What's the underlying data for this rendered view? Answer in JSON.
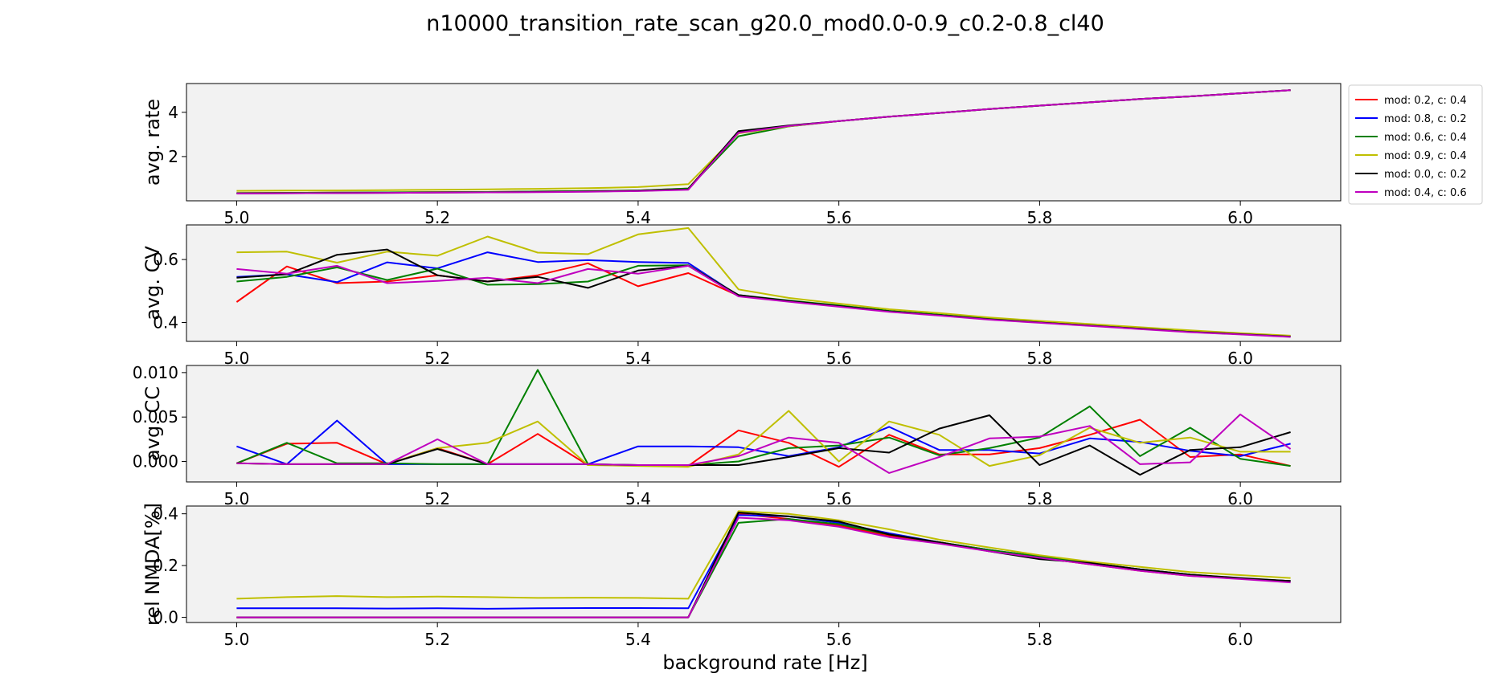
{
  "chart_data": {
    "type": "line",
    "title": "n10000_transition_rate_scan_g20.0_mod0.0-0.9_c0.2-0.8_cl40",
    "xlabel": "background rate [Hz]",
    "xlim": [
      4.95,
      6.1
    ],
    "x_ticks": [
      "5.0",
      "5.2",
      "5.4",
      "5.6",
      "5.8",
      "6.0"
    ],
    "x": [
      5.0,
      5.05,
      5.1,
      5.15,
      5.2,
      5.25,
      5.3,
      5.35,
      5.4,
      5.45,
      5.5,
      5.55,
      5.6,
      5.65,
      5.7,
      5.75,
      5.8,
      5.85,
      5.9,
      5.95,
      6.0,
      6.05
    ],
    "legend": {
      "position": "outside-right",
      "entries": [
        {
          "label": "mod: 0.2, c: 0.4",
          "color": "#ff0000"
        },
        {
          "label": "mod: 0.8, c: 0.2",
          "color": "#0000ff"
        },
        {
          "label": "mod: 0.6, c: 0.4",
          "color": "#008000"
        },
        {
          "label": "mod: 0.9, c: 0.4",
          "color": "#bfbf00"
        },
        {
          "label": "mod: 0.0, c: 0.2",
          "color": "#000000"
        },
        {
          "label": "mod: 0.4, c: 0.6",
          "color": "#bf00bf"
        }
      ]
    },
    "panels": [
      {
        "ylabel": "avg. rate",
        "ylim": [
          0,
          5.3
        ],
        "y_ticks": [
          {
            "v": 2,
            "label": "2"
          },
          {
            "v": 4,
            "label": "4"
          }
        ],
        "series": [
          {
            "color": "#ff0000",
            "values": [
              0.35,
              0.36,
              0.37,
              0.38,
              0.39,
              0.4,
              0.42,
              0.44,
              0.47,
              0.55,
              3.1,
              3.38,
              3.6,
              3.8,
              3.97,
              4.15,
              4.3,
              4.45,
              4.6,
              4.72,
              4.86,
              5.0
            ]
          },
          {
            "color": "#0000ff",
            "values": [
              0.34,
              0.35,
              0.36,
              0.37,
              0.38,
              0.39,
              0.41,
              0.43,
              0.46,
              0.53,
              3.12,
              3.39,
              3.6,
              3.8,
              3.97,
              4.15,
              4.3,
              4.45,
              4.6,
              4.72,
              4.86,
              5.0
            ]
          },
          {
            "color": "#008000",
            "values": [
              0.35,
              0.36,
              0.37,
              0.38,
              0.39,
              0.4,
              0.42,
              0.44,
              0.47,
              0.56,
              2.92,
              3.36,
              3.6,
              3.8,
              3.97,
              4.15,
              4.3,
              4.45,
              4.6,
              4.72,
              4.86,
              5.0
            ]
          },
          {
            "color": "#bfbf00",
            "values": [
              0.45,
              0.46,
              0.47,
              0.48,
              0.5,
              0.52,
              0.54,
              0.57,
              0.62,
              0.75,
              3.05,
              3.37,
              3.6,
              3.8,
              3.97,
              4.15,
              4.3,
              4.45,
              4.6,
              4.72,
              4.86,
              5.0
            ]
          },
          {
            "color": "#000000",
            "values": [
              0.33,
              0.34,
              0.35,
              0.36,
              0.37,
              0.38,
              0.4,
              0.42,
              0.45,
              0.52,
              3.15,
              3.4,
              3.6,
              3.8,
              3.97,
              4.15,
              4.3,
              4.45,
              4.6,
              4.72,
              4.86,
              5.0
            ]
          },
          {
            "color": "#bf00bf",
            "values": [
              0.33,
              0.34,
              0.35,
              0.36,
              0.37,
              0.38,
              0.39,
              0.41,
              0.44,
              0.5,
              3.08,
              3.38,
              3.6,
              3.8,
              3.97,
              4.15,
              4.3,
              4.45,
              4.6,
              4.72,
              4.86,
              5.0
            ]
          }
        ]
      },
      {
        "ylabel": "avg. CV",
        "ylim": [
          0.34,
          0.71
        ],
        "y_ticks": [
          {
            "v": 0.4,
            "label": "0.4"
          },
          {
            "v": 0.6,
            "label": "0.6"
          }
        ],
        "series": [
          {
            "color": "#ff0000",
            "values": [
              0.465,
              0.578,
              0.525,
              0.53,
              0.55,
              0.53,
              0.55,
              0.588,
              0.515,
              0.557,
              0.485,
              0.468,
              0.452,
              0.435,
              0.423,
              0.41,
              0.4,
              0.39,
              0.38,
              0.37,
              0.363,
              0.355
            ]
          },
          {
            "color": "#0000ff",
            "values": [
              0.545,
              0.553,
              0.528,
              0.591,
              0.572,
              0.623,
              0.592,
              0.598,
              0.592,
              0.589,
              0.485,
              0.468,
              0.452,
              0.435,
              0.423,
              0.41,
              0.4,
              0.39,
              0.38,
              0.37,
              0.363,
              0.355
            ]
          },
          {
            "color": "#008000",
            "values": [
              0.53,
              0.545,
              0.575,
              0.535,
              0.571,
              0.52,
              0.522,
              0.53,
              0.58,
              0.582,
              0.487,
              0.47,
              0.454,
              0.437,
              0.425,
              0.412,
              0.402,
              0.392,
              0.382,
              0.372,
              0.364,
              0.357
            ]
          },
          {
            "color": "#bfbf00",
            "values": [
              0.623,
              0.625,
              0.59,
              0.625,
              0.612,
              0.673,
              0.622,
              0.617,
              0.68,
              0.7,
              0.505,
              0.478,
              0.46,
              0.442,
              0.43,
              0.416,
              0.405,
              0.395,
              0.385,
              0.375,
              0.366,
              0.358
            ]
          },
          {
            "color": "#000000",
            "values": [
              0.542,
              0.553,
              0.615,
              0.632,
              0.55,
              0.53,
              0.545,
              0.51,
              0.565,
              0.58,
              0.487,
              0.468,
              0.452,
              0.435,
              0.423,
              0.41,
              0.4,
              0.39,
              0.38,
              0.37,
              0.363,
              0.355
            ]
          },
          {
            "color": "#bf00bf",
            "values": [
              0.57,
              0.555,
              0.58,
              0.525,
              0.532,
              0.542,
              0.525,
              0.57,
              0.555,
              0.58,
              0.483,
              0.466,
              0.45,
              0.434,
              0.422,
              0.409,
              0.399,
              0.389,
              0.379,
              0.369,
              0.362,
              0.354
            ]
          }
        ]
      },
      {
        "ylabel": "avg. CC",
        "ylim": [
          -0.0023,
          0.0108
        ],
        "y_ticks": [
          {
            "v": 0.0,
            "label": "0.000"
          },
          {
            "v": 0.005,
            "label": "0.005"
          },
          {
            "v": 0.01,
            "label": "0.010"
          }
        ],
        "series": [
          {
            "color": "#ff0000",
            "values": [
              -0.0002,
              0.002,
              0.0021,
              -0.0003,
              0.0015,
              -0.0003,
              0.0031,
              -0.0004,
              -0.0004,
              -0.0005,
              0.0035,
              0.0021,
              -0.0006,
              0.003,
              0.0008,
              0.0008,
              0.0015,
              0.003,
              0.0047,
              0.0005,
              0.0008,
              -0.0005
            ]
          },
          {
            "color": "#0000ff",
            "values": [
              0.0017,
              -0.0003,
              0.0046,
              -0.0003,
              -0.0003,
              -0.0003,
              -0.0003,
              -0.0003,
              0.0017,
              0.0017,
              0.0016,
              0.0006,
              0.0016,
              0.0039,
              0.0013,
              0.0013,
              0.0009,
              0.0026,
              0.0022,
              0.0012,
              0.0006,
              0.002
            ]
          },
          {
            "color": "#008000",
            "values": [
              -0.0002,
              0.0021,
              -0.0002,
              -0.0002,
              -0.0003,
              -0.0003,
              0.0103,
              -0.0003,
              -0.0004,
              -0.0004,
              0.0,
              0.0015,
              0.0018,
              0.0027,
              0.0007,
              0.0015,
              0.0027,
              0.0062,
              0.0006,
              0.0038,
              0.0003,
              -0.0005
            ]
          },
          {
            "color": "#bfbf00",
            "values": [
              -0.0002,
              -0.0003,
              -0.0003,
              -0.0003,
              0.0015,
              0.0021,
              0.0045,
              -0.0004,
              -0.0005,
              -0.0006,
              0.0008,
              0.0057,
              0.0,
              0.0045,
              0.003,
              -0.0005,
              0.0007,
              0.0038,
              0.0021,
              0.0027,
              0.0011,
              0.0011
            ]
          },
          {
            "color": "#000000",
            "values": [
              -0.0002,
              -0.0003,
              -0.0003,
              -0.0003,
              0.0014,
              -0.0003,
              -0.0003,
              -0.0003,
              -0.0004,
              -0.0004,
              -0.0004,
              0.0005,
              0.0015,
              0.001,
              0.0037,
              0.0052,
              -0.0004,
              0.0018,
              -0.0015,
              0.0013,
              0.0016,
              0.0033
            ]
          },
          {
            "color": "#bf00bf",
            "values": [
              -0.0002,
              -0.0003,
              -0.0003,
              -0.0003,
              0.0025,
              -0.0003,
              -0.0003,
              -0.0003,
              -0.0004,
              -0.0004,
              0.0006,
              0.0027,
              0.0021,
              -0.0013,
              0.0005,
              0.0026,
              0.0028,
              0.004,
              -0.0003,
              -0.0001,
              0.0053,
              0.0014
            ]
          }
        ]
      },
      {
        "ylabel": "rel NMDA[%]",
        "ylim": [
          -0.02,
          0.43
        ],
        "y_ticks": [
          {
            "v": 0.0,
            "label": "0.0"
          },
          {
            "v": 0.2,
            "label": "0.2"
          },
          {
            "v": 0.4,
            "label": "0.4"
          }
        ],
        "series": [
          {
            "color": "#ff0000",
            "values": [
              0.0,
              0.0,
              0.0,
              0.0,
              0.0,
              0.0,
              0.0,
              0.0,
              0.0,
              0.0,
              0.4,
              0.38,
              0.355,
              0.315,
              0.29,
              0.26,
              0.23,
              0.205,
              0.18,
              0.16,
              0.15,
              0.14
            ]
          },
          {
            "color": "#0000ff",
            "values": [
              0.035,
              0.035,
              0.035,
              0.034,
              0.035,
              0.033,
              0.035,
              0.036,
              0.036,
              0.035,
              0.395,
              0.39,
              0.365,
              0.325,
              0.29,
              0.26,
              0.235,
              0.21,
              0.185,
              0.165,
              0.15,
              0.14
            ]
          },
          {
            "color": "#008000",
            "values": [
              0.0,
              0.0,
              0.0,
              0.0,
              0.0,
              0.0,
              0.0,
              0.0,
              0.0,
              0.0,
              0.365,
              0.38,
              0.36,
              0.32,
              0.29,
              0.26,
              0.235,
              0.21,
              0.185,
              0.165,
              0.15,
              0.14
            ]
          },
          {
            "color": "#bfbf00",
            "values": [
              0.072,
              0.078,
              0.082,
              0.078,
              0.08,
              0.078,
              0.075,
              0.076,
              0.075,
              0.072,
              0.41,
              0.4,
              0.375,
              0.34,
              0.3,
              0.27,
              0.24,
              0.215,
              0.195,
              0.175,
              0.163,
              0.152
            ]
          },
          {
            "color": "#000000",
            "values": [
              0.0,
              0.0,
              0.0,
              0.0,
              0.0,
              0.0,
              0.0,
              0.0,
              0.0,
              0.0,
              0.405,
              0.39,
              0.37,
              0.32,
              0.29,
              0.255,
              0.225,
              0.21,
              0.185,
              0.165,
              0.152,
              0.14
            ]
          },
          {
            "color": "#bf00bf",
            "values": [
              0.0,
              0.0,
              0.0,
              0.0,
              0.0,
              0.0,
              0.0,
              0.0,
              0.0,
              0.0,
              0.385,
              0.375,
              0.35,
              0.31,
              0.285,
              0.255,
              0.23,
              0.205,
              0.18,
              0.16,
              0.148,
              0.135
            ]
          }
        ]
      }
    ]
  }
}
